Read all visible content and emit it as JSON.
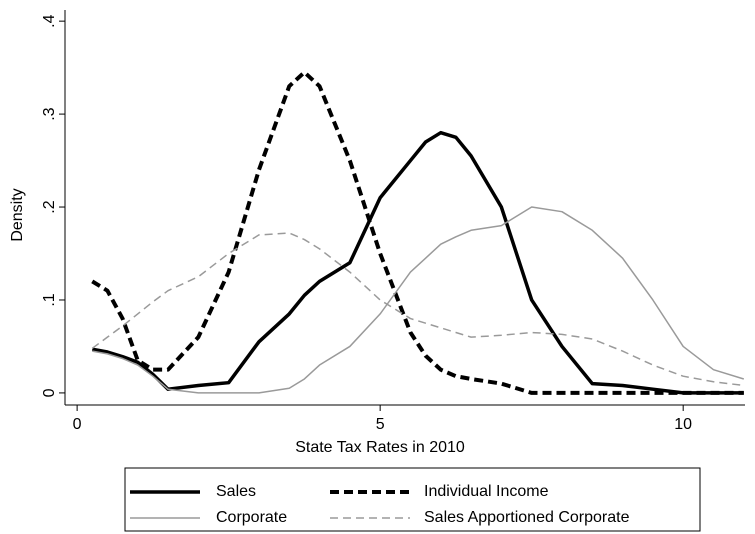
{
  "chart_data": {
    "type": "line",
    "x_label": "State Tax Rates in 2010",
    "y_label": "Density",
    "x": [
      0.25,
      0.5,
      0.75,
      1,
      1.25,
      1.5,
      2,
      2.5,
      3,
      3.5,
      3.75,
      4,
      4.5,
      5,
      5.5,
      5.75,
      6,
      6.25,
      6.5,
      7,
      7.5,
      8,
      8.5,
      9,
      9.5,
      10,
      10.5,
      11
    ],
    "series": [
      {
        "name": "Sales",
        "color": "#000000",
        "line_width": 3.5,
        "dashed": false,
        "values": [
          0.047,
          0.044,
          0.039,
          0.033,
          0.02,
          0.004,
          0.008,
          0.011,
          0.055,
          0.085,
          0.105,
          0.12,
          0.14,
          0.21,
          0.25,
          0.27,
          0.28,
          0.275,
          0.255,
          0.2,
          0.1,
          0.05,
          0.01,
          0.008,
          0.004,
          0,
          0,
          0
        ]
      },
      {
        "name": "Individual Income",
        "color": "#000000",
        "line_width": 4,
        "dashed": true,
        "values": [
          0.12,
          0.11,
          0.08,
          0.035,
          0.025,
          0.025,
          0.06,
          0.13,
          0.24,
          0.33,
          0.345,
          0.33,
          0.25,
          0.15,
          0.065,
          0.04,
          0.025,
          0.018,
          0.015,
          0.01,
          0,
          0,
          0,
          0,
          0,
          0,
          0,
          0
        ]
      },
      {
        "name": "Corporate",
        "color": "#9a9a9a",
        "line_width": 1.5,
        "dashed": false,
        "values": [
          0.045,
          0.042,
          0.037,
          0.03,
          0.018,
          0.004,
          0,
          0,
          0,
          0.005,
          0.015,
          0.03,
          0.05,
          0.085,
          0.13,
          0.145,
          0.16,
          0.168,
          0.175,
          0.18,
          0.2,
          0.195,
          0.175,
          0.145,
          0.1,
          0.05,
          0.025,
          0.015
        ]
      },
      {
        "name": "Sales Apportioned Corporate",
        "color": "#9a9a9a",
        "line_width": 1.5,
        "dashed": true,
        "values": [
          0.048,
          0.06,
          0.072,
          0.085,
          0.098,
          0.11,
          0.125,
          0.15,
          0.17,
          0.172,
          0.165,
          0.155,
          0.13,
          0.1,
          0.08,
          0.075,
          0.07,
          0.065,
          0.06,
          0.062,
          0.065,
          0.063,
          0.058,
          0.045,
          0.03,
          0.018,
          0.012,
          0.008
        ]
      }
    ],
    "xlim": [
      -0.2,
      11.02
    ],
    "ylim": [
      -0.013,
      0.412
    ],
    "xticks": [
      0,
      5,
      10
    ],
    "yticks": [
      0,
      {
        "value": 0.1,
        "label": ".1"
      },
      {
        "value": 0.2,
        "label": ".2"
      },
      {
        "value": 0.3,
        "label": ".3"
      },
      {
        "value": 0.4,
        "label": ".4"
      }
    ],
    "legend": "bottom"
  }
}
